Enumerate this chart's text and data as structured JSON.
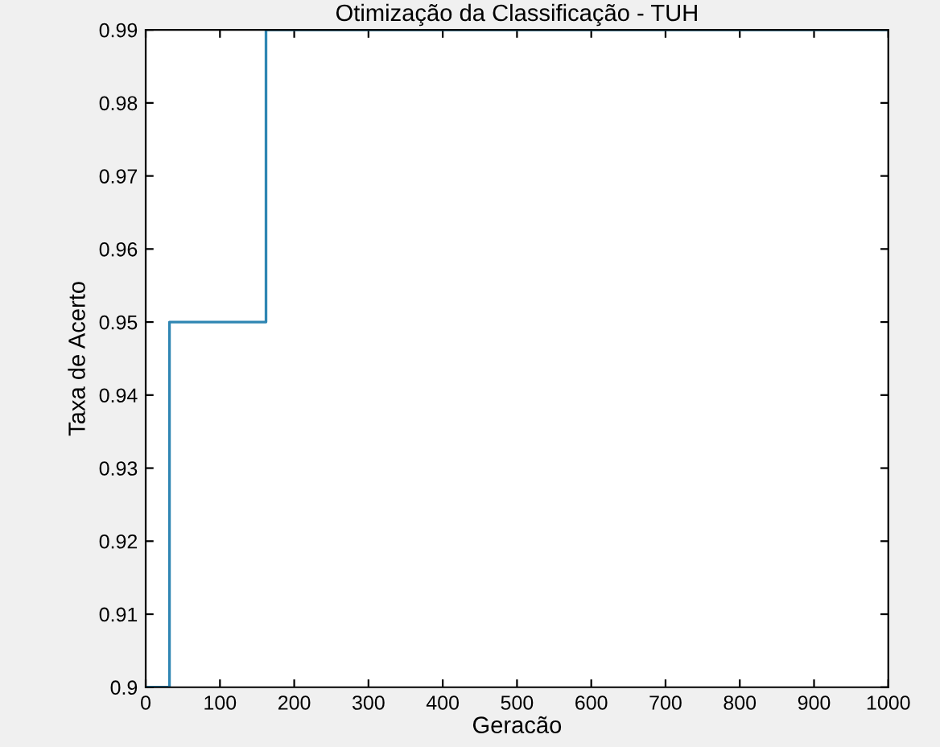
{
  "chart_data": {
    "type": "step",
    "title": "Otimização da Classificação - TUH",
    "xlabel": "Geracão",
    "ylabel": "Taxa de Acerto",
    "x": [
      0,
      32,
      162,
      1000
    ],
    "series": [
      {
        "color": "#2f86b3",
        "values": [
          0.9,
          0.95,
          0.99,
          0.99
        ]
      }
    ],
    "xlim": [
      0,
      1000
    ],
    "xticks": [
      0,
      100,
      200,
      300,
      400,
      500,
      600,
      700,
      800,
      900,
      1000
    ],
    "ylim": [
      0.9,
      0.99
    ],
    "yticks": [
      0.9,
      0.91,
      0.92,
      0.93,
      0.94,
      0.95,
      0.96,
      0.97,
      0.98,
      0.99
    ],
    "grid": false,
    "legend": false
  }
}
